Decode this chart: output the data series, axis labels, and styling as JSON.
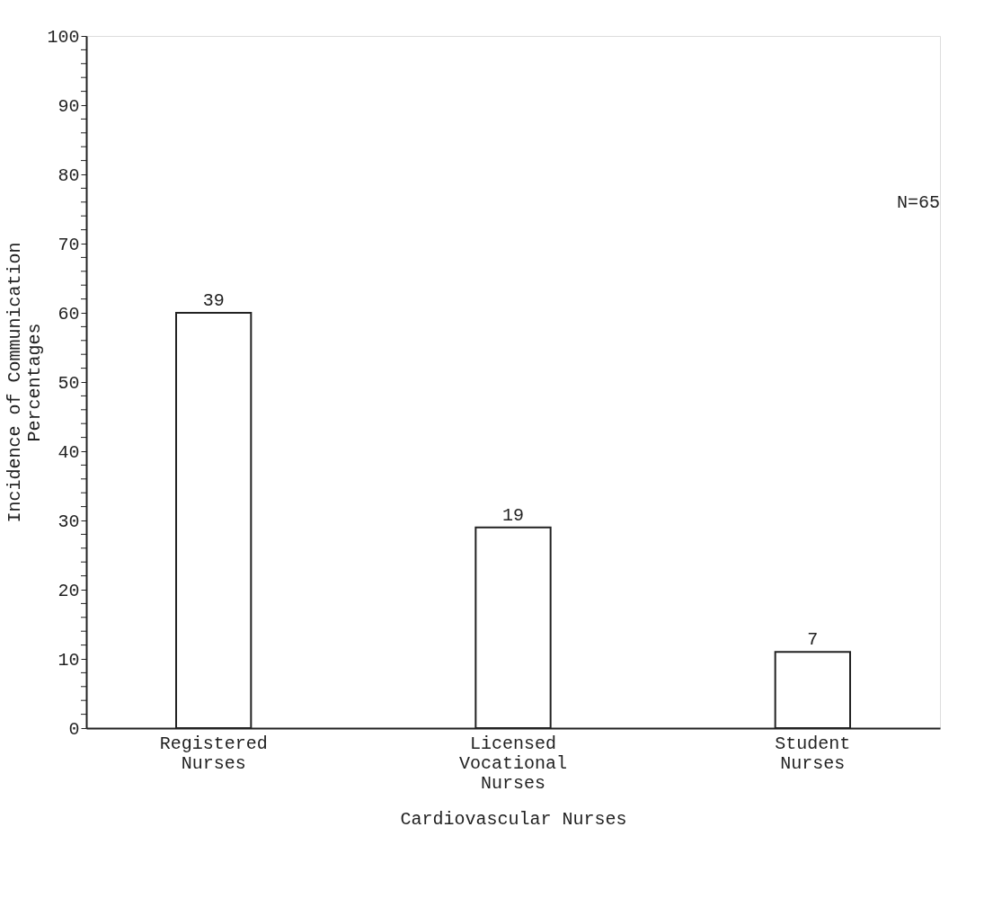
{
  "chart_data": {
    "type": "bar",
    "categories": [
      "Registered Nurses",
      "Licensed Vocational Nurses",
      "Student Nurses"
    ],
    "values": [
      60,
      29,
      11
    ],
    "color": "#ffffff",
    "xlabel": "Cardiovascular Nurses",
    "ylabel": "Incidence of Communication Percentages",
    "ylim": [
      0,
      100
    ],
    "yticks": [
      0,
      {
        "value": 2,
        "label": null
      },
      {
        "value": 4,
        "label": null
      },
      {
        "value": 6,
        "label": null
      },
      {
        "value": 8,
        "label": null
      },
      10,
      {
        "value": 12,
        "label": null
      },
      {
        "value": 14,
        "label": null
      },
      {
        "value": 16,
        "label": null
      },
      {
        "value": 18,
        "label": null
      },
      20,
      {
        "value": 22,
        "label": null
      },
      {
        "value": 24,
        "label": null
      },
      {
        "value": 26,
        "label": null
      },
      {
        "value": 28,
        "label": null
      },
      30,
      {
        "value": 32,
        "label": null
      },
      {
        "value": 34,
        "label": null
      },
      {
        "value": 36,
        "label": null
      },
      {
        "value": 38,
        "label": null
      },
      40,
      {
        "value": 42,
        "label": null
      },
      {
        "value": 44,
        "label": null
      },
      {
        "value": 46,
        "label": null
      },
      {
        "value": 48,
        "label": null
      },
      50,
      {
        "value": 52,
        "label": null
      },
      {
        "value": 54,
        "label": null
      },
      {
        "value": 56,
        "label": null
      },
      {
        "value": 58,
        "label": null
      },
      60,
      {
        "value": 62,
        "label": null
      },
      {
        "value": 64,
        "label": null
      },
      {
        "value": 66,
        "label": null
      },
      {
        "value": 68,
        "label": null
      },
      70,
      {
        "value": 72,
        "label": null
      },
      {
        "value": 74,
        "label": null
      },
      {
        "value": 76,
        "label": null
      },
      {
        "value": 78,
        "label": null
      },
      80,
      {
        "value": 82,
        "label": null
      },
      {
        "value": 84,
        "label": null
      },
      {
        "value": 86,
        "label": null
      },
      {
        "value": 88,
        "label": null
      },
      90,
      {
        "value": 92,
        "label": null
      },
      {
        "value": 94,
        "label": null
      },
      {
        "value": 96,
        "label": null
      },
      {
        "value": 98,
        "label": null
      },
      100
    ],
    "annotations": [
      {
        "text": "39",
        "x": "Registered Nurses",
        "y": 60
      },
      {
        "text": "19",
        "x": "Licensed Vocational Nurses",
        "y": 29
      },
      {
        "text": "7",
        "x": "Student Nurses",
        "y": 11
      },
      "N=65"
    ],
    "grid": false
  }
}
